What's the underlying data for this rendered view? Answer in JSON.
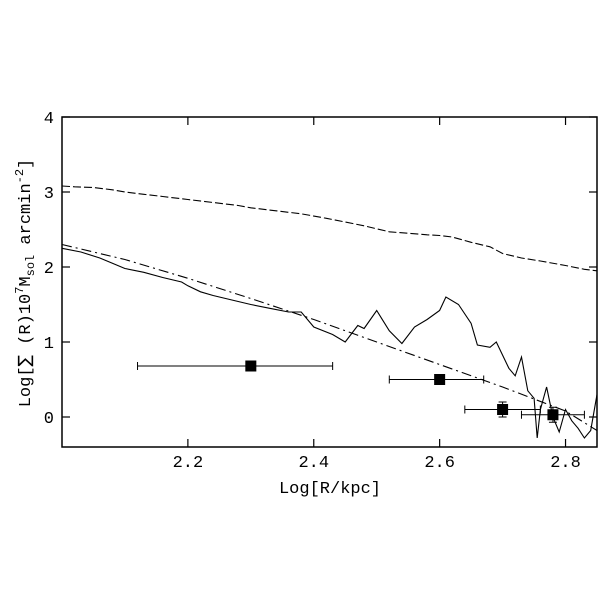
{
  "chart_data": {
    "type": "line",
    "title": "",
    "xlabel": "Log[R/kpc]",
    "ylabel": {
      "prefix": "Log[",
      "sigma": "∑",
      "mid": " (R)10",
      "exp1": "7",
      "m": "M",
      "sub": "sol",
      "unit": " arcmin",
      "exp2": "-2",
      "suffix": "]"
    },
    "xlim": [
      2.0,
      2.85
    ],
    "ylim": [
      -0.4,
      4.0
    ],
    "xticks": [
      {
        "value": 2.2,
        "label": "2.2"
      },
      {
        "value": 2.4,
        "label": "2.4"
      },
      {
        "value": 2.6,
        "label": "2.6"
      },
      {
        "value": 2.8,
        "label": "2.8"
      }
    ],
    "yticks": [
      {
        "value": 0,
        "label": "0"
      },
      {
        "value": 1,
        "label": "1"
      },
      {
        "value": 2,
        "label": "2"
      },
      {
        "value": 3,
        "label": "3"
      },
      {
        "value": 4,
        "label": "4"
      }
    ],
    "grid": false,
    "series": [
      {
        "style": "dashed",
        "x": [
          2.0,
          2.02,
          2.05,
          2.08,
          2.1,
          2.13,
          2.16,
          2.2,
          2.24,
          2.28,
          2.3,
          2.34,
          2.38,
          2.42,
          2.45,
          2.48,
          2.5,
          2.52,
          2.55,
          2.58,
          2.6,
          2.62,
          2.65,
          2.68,
          2.7,
          2.73,
          2.76,
          2.8,
          2.83,
          2.85
        ],
        "y": [
          3.08,
          3.07,
          3.06,
          3.03,
          3.0,
          2.97,
          2.94,
          2.9,
          2.86,
          2.82,
          2.79,
          2.75,
          2.71,
          2.65,
          2.6,
          2.55,
          2.51,
          2.47,
          2.45,
          2.43,
          2.42,
          2.4,
          2.33,
          2.27,
          2.18,
          2.12,
          2.08,
          2.02,
          1.97,
          1.95
        ]
      },
      {
        "style": "dash-dot",
        "x": [
          2.0,
          2.1,
          2.2,
          2.3,
          2.4,
          2.5,
          2.6,
          2.7,
          2.8,
          2.85
        ],
        "y": [
          2.3,
          2.1,
          1.85,
          1.58,
          1.3,
          1.0,
          0.7,
          0.4,
          0.08,
          -0.18
        ]
      },
      {
        "style": "solid",
        "x": [
          2.0,
          2.03,
          2.06,
          2.08,
          2.1,
          2.13,
          2.16,
          2.19,
          2.2,
          2.22,
          2.24,
          2.27,
          2.3,
          2.33,
          2.36,
          2.38,
          2.4,
          2.43,
          2.45,
          2.47,
          2.48,
          2.5,
          2.52,
          2.54,
          2.56,
          2.58,
          2.6,
          2.61,
          2.63,
          2.65,
          2.66,
          2.68,
          2.69,
          2.71,
          2.72,
          2.73,
          2.74,
          2.75,
          2.755,
          2.76,
          2.77,
          2.78,
          2.79,
          2.8,
          2.81,
          2.82,
          2.83,
          2.84,
          2.85
        ],
        "y": [
          2.25,
          2.2,
          2.12,
          2.05,
          1.98,
          1.93,
          1.86,
          1.8,
          1.75,
          1.67,
          1.62,
          1.56,
          1.5,
          1.45,
          1.4,
          1.4,
          1.2,
          1.1,
          1.0,
          1.22,
          1.18,
          1.42,
          1.15,
          0.98,
          1.2,
          1.3,
          1.42,
          1.6,
          1.5,
          1.25,
          0.96,
          0.93,
          1.0,
          0.65,
          0.55,
          0.8,
          0.35,
          0.25,
          -0.28,
          0.1,
          0.4,
          0.0,
          -0.2,
          0.1,
          -0.05,
          -0.15,
          -0.28,
          -0.18,
          0.3
        ]
      }
    ],
    "points": [
      {
        "x": 2.3,
        "y": 0.68,
        "xerr_low": 2.12,
        "xerr_high": 2.43,
        "yerr": 0.0
      },
      {
        "x": 2.6,
        "y": 0.5,
        "xerr_low": 2.52,
        "xerr_high": 2.67,
        "yerr": 0.0
      },
      {
        "x": 2.7,
        "y": 0.1,
        "xerr_low": 2.64,
        "xerr_high": 2.76,
        "yerr": 0.1
      },
      {
        "x": 2.78,
        "y": 0.03,
        "xerr_low": 2.73,
        "xerr_high": 2.83,
        "yerr": 0.1
      }
    ]
  }
}
